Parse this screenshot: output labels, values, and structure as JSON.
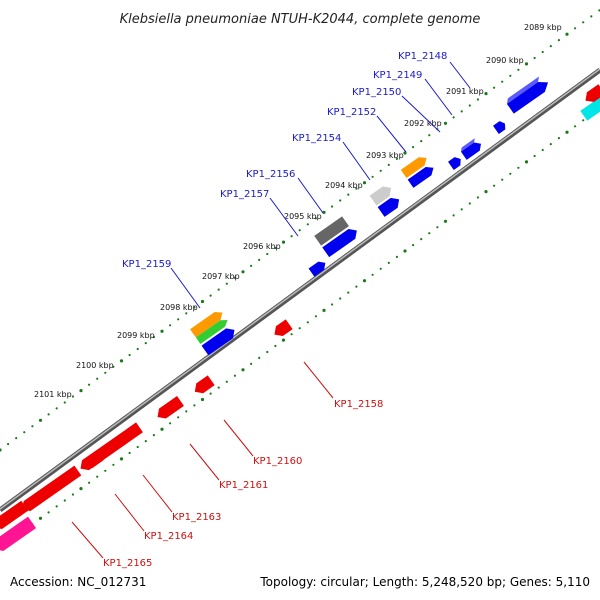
{
  "title": "Klebsiella pneumoniae NTUH-K2044, complete genome",
  "footer": {
    "accession": "Accession: NC_012731",
    "topology": "Topology: circular; Length: 5,248,520 bp; Genes: 5,110"
  },
  "kbp_ticks": [
    "2089 kbp",
    "2090 kbp",
    "2091 kbp",
    "2092 kbp",
    "2093 kbp",
    "2094 kbp",
    "2095 kbp",
    "2096 kbp",
    "2097 kbp",
    "2098 kbp",
    "2099 kbp",
    "2100 kbp",
    "2101 kbp"
  ],
  "genes_top": [
    "KP1_2148",
    "KP1_2149",
    "KP1_2150",
    "KP1_2152",
    "KP1_2154",
    "KP1_2156",
    "KP1_2157",
    "KP1_2159"
  ],
  "genes_bottom": [
    "KP1_2158",
    "KP1_2160",
    "KP1_2161",
    "KP1_2163",
    "KP1_2164",
    "KP1_2165"
  ],
  "colors": {
    "forward": "#0000ee",
    "reverse": "#ee0000",
    "orange": "#ff9900",
    "green": "#33cc33",
    "gray": "#777777",
    "lightgray": "#cccccc",
    "cyan": "#00e5e5",
    "magenta": "#ff1493",
    "backbone": "#888888",
    "tickmarks": "#1a7a1a"
  }
}
